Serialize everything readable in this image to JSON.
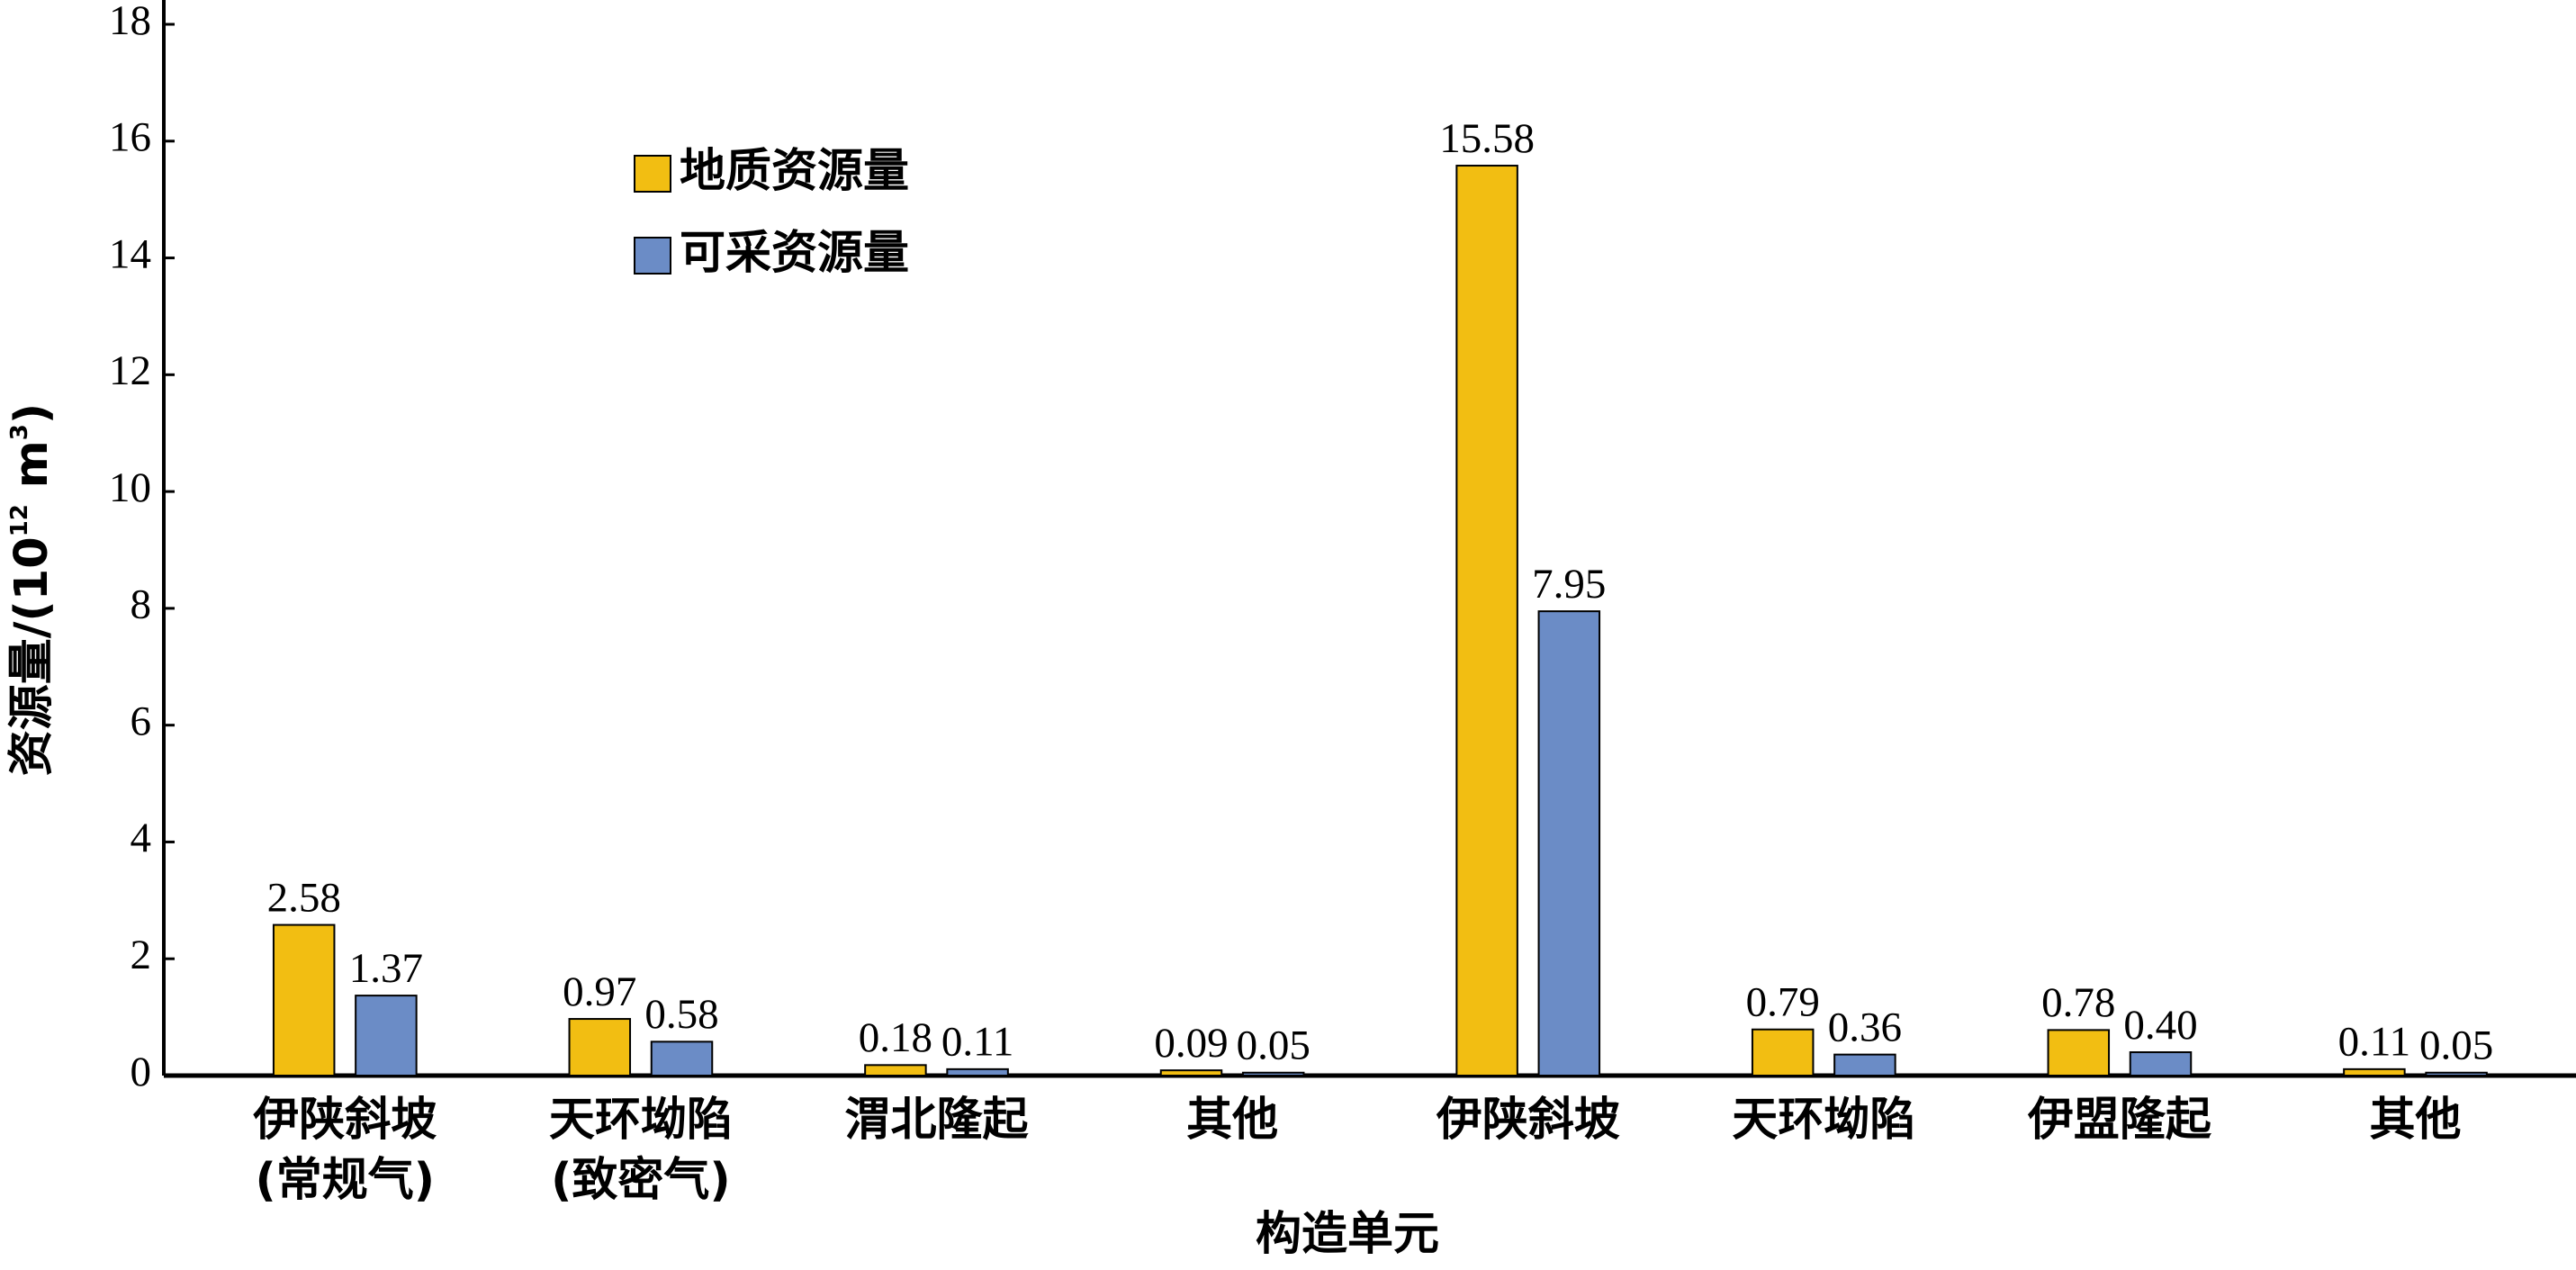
{
  "chart_data": {
    "type": "bar",
    "x_label": "构造单元",
    "y_label": [
      "资源量/(10",
      "12",
      " m",
      "3",
      ")"
    ],
    "categories": [
      [
        "伊陕斜坡",
        "(常规气)"
      ],
      [
        "天环坳陷",
        "(致密气)"
      ],
      [
        "渭北隆起"
      ],
      [
        "其他"
      ],
      [
        "伊陕斜坡"
      ],
      [
        "天环坳陷"
      ],
      [
        "伊盟隆起"
      ],
      [
        "其他"
      ]
    ],
    "series": [
      {
        "name": "地质资源量",
        "color": "#f2be12",
        "values": [
          2.58,
          0.97,
          0.18,
          0.09,
          15.58,
          0.79,
          0.78,
          0.11
        ]
      },
      {
        "name": "可采资源量",
        "color": "#6b8cc6",
        "values": [
          1.37,
          0.58,
          0.11,
          0.05,
          7.95,
          0.36,
          0.4,
          0.05
        ],
        "value_labels": [
          "1.37",
          "0.58",
          "0.11",
          "0.05",
          "7.95",
          "0.36",
          "0.40",
          "0.05"
        ]
      }
    ],
    "ylim": [
      0,
      18
    ],
    "yticks": [
      0,
      2,
      4,
      6,
      8,
      10,
      12,
      14,
      16,
      18
    ],
    "grid": false,
    "legend": "upper-left"
  }
}
